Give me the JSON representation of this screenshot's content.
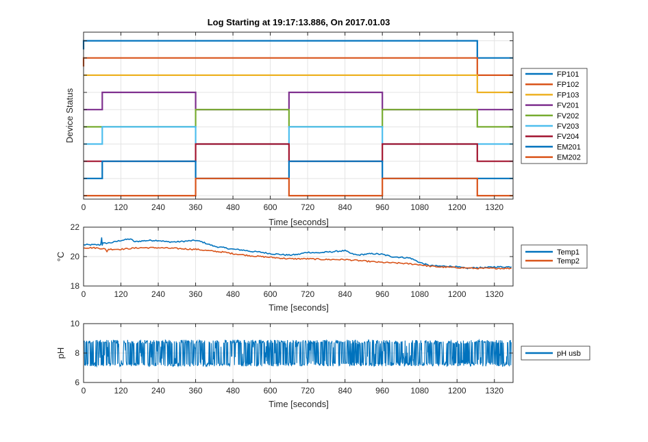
{
  "figure_title": "Log Starting at 19:17:13.886, On 2017.01.03",
  "colors": {
    "blue": "#0072BD",
    "orange": "#D95319",
    "yellow": "#EDB120",
    "purple": "#7E2F8E",
    "green": "#77AC30",
    "cyan": "#4DBEEE",
    "darkred": "#A2142F"
  },
  "chart_data": [
    {
      "id": "status",
      "type": "line",
      "xlabel": "Time [seconds]",
      "ylabel": "Device Status",
      "xlim": [
        0,
        1380
      ],
      "xticks": [
        0,
        120,
        240,
        360,
        480,
        600,
        720,
        840,
        960,
        1080,
        1200,
        1320
      ],
      "legend_position": "right",
      "grid": true,
      "series": [
        {
          "name": "FP101",
          "color": "#0072BD",
          "points": [
            [
              0,
              8.5
            ],
            [
              0,
              9
            ],
            [
              1265,
              9
            ],
            [
              1265,
              8
            ],
            [
              1380,
              8
            ]
          ]
        },
        {
          "name": "FP102",
          "color": "#D95319",
          "points": [
            [
              0,
              7.5
            ],
            [
              0,
              8
            ],
            [
              1265,
              8
            ],
            [
              1265,
              7
            ],
            [
              1380,
              7
            ]
          ]
        },
        {
          "name": "FP103",
          "color": "#EDB120",
          "points": [
            [
              0,
              7
            ],
            [
              1265,
              7
            ],
            [
              1265,
              6
            ],
            [
              1380,
              6
            ]
          ]
        },
        {
          "name": "FV201",
          "color": "#7E2F8E",
          "points": [
            [
              0,
              5
            ],
            [
              60,
              5
            ],
            [
              60,
              6
            ],
            [
              360,
              6
            ],
            [
              360,
              5
            ],
            [
              660,
              5
            ],
            [
              660,
              6
            ],
            [
              960,
              6
            ],
            [
              960,
              5
            ],
            [
              1380,
              5
            ]
          ]
        },
        {
          "name": "FV202",
          "color": "#77AC30",
          "points": [
            [
              0,
              4
            ],
            [
              360,
              4
            ],
            [
              360,
              5
            ],
            [
              660,
              5
            ],
            [
              660,
              4
            ],
            [
              960,
              4
            ],
            [
              960,
              5
            ],
            [
              1265,
              5
            ],
            [
              1265,
              4
            ],
            [
              1380,
              4
            ]
          ]
        },
        {
          "name": "FV203",
          "color": "#4DBEEE",
          "points": [
            [
              0,
              3
            ],
            [
              60,
              3
            ],
            [
              60,
              4
            ],
            [
              360,
              4
            ],
            [
              360,
              3
            ],
            [
              660,
              3
            ],
            [
              660,
              4
            ],
            [
              960,
              4
            ],
            [
              960,
              3
            ],
            [
              1380,
              3
            ]
          ]
        },
        {
          "name": "FV204",
          "color": "#A2142F",
          "points": [
            [
              0,
              2
            ],
            [
              360,
              2
            ],
            [
              360,
              3
            ],
            [
              660,
              3
            ],
            [
              660,
              2
            ],
            [
              960,
              2
            ],
            [
              960,
              3
            ],
            [
              1265,
              3
            ],
            [
              1265,
              2
            ],
            [
              1380,
              2
            ]
          ]
        },
        {
          "name": "EM201",
          "color": "#0072BD",
          "points": [
            [
              0,
              1
            ],
            [
              60,
              1
            ],
            [
              60,
              2
            ],
            [
              360,
              2
            ],
            [
              360,
              1
            ],
            [
              660,
              1
            ],
            [
              660,
              2
            ],
            [
              960,
              2
            ],
            [
              960,
              1
            ],
            [
              1380,
              1
            ]
          ]
        },
        {
          "name": "EM202",
          "color": "#D95319",
          "points": [
            [
              0,
              0
            ],
            [
              360,
              0
            ],
            [
              360,
              1
            ],
            [
              660,
              1
            ],
            [
              660,
              0
            ],
            [
              960,
              0
            ],
            [
              960,
              1
            ],
            [
              1265,
              1
            ],
            [
              1265,
              0
            ],
            [
              1380,
              0
            ]
          ]
        }
      ]
    },
    {
      "id": "temp",
      "type": "line",
      "xlabel": "Time [seconds]",
      "ylabel": "°C",
      "xlim": [
        0,
        1380
      ],
      "ylim": [
        18,
        22
      ],
      "xticks": [
        0,
        120,
        240,
        360,
        480,
        600,
        720,
        840,
        960,
        1080,
        1200,
        1320
      ],
      "yticks": [
        18,
        20,
        22
      ],
      "legend_position": "right",
      "grid": true,
      "series": [
        {
          "name": "Temp1",
          "color": "#0072BD",
          "x": [
            0,
            30,
            55,
            58,
            60,
            62,
            65,
            90,
            120,
            150,
            165,
            180,
            210,
            240,
            270,
            300,
            330,
            360,
            380,
            400,
            420,
            450,
            480,
            510,
            540,
            570,
            600,
            630,
            660,
            690,
            720,
            750,
            780,
            810,
            840,
            860,
            880,
            900,
            930,
            960,
            990,
            1020,
            1050,
            1080,
            1110,
            1140,
            1170,
            1200,
            1230,
            1260,
            1290,
            1320,
            1350,
            1375
          ],
          "y": [
            20.8,
            20.8,
            20.8,
            21.3,
            20.8,
            20.9,
            20.9,
            20.95,
            21.1,
            21.2,
            21.0,
            21.05,
            21.1,
            21.1,
            21.0,
            21.0,
            21.05,
            21.1,
            21.0,
            20.85,
            20.7,
            20.6,
            20.5,
            20.45,
            20.35,
            20.3,
            20.2,
            20.15,
            20.1,
            20.15,
            20.3,
            20.25,
            20.3,
            20.35,
            20.4,
            20.2,
            20.1,
            20.15,
            20.2,
            20.15,
            20.0,
            19.95,
            19.9,
            19.6,
            19.4,
            19.35,
            19.35,
            19.3,
            19.2,
            19.25,
            19.25,
            19.3,
            19.3,
            19.3
          ]
        },
        {
          "name": "Temp2",
          "color": "#D95319",
          "x": [
            0,
            30,
            60,
            70,
            75,
            80,
            120,
            180,
            240,
            300,
            350,
            360,
            400,
            450,
            480,
            540,
            600,
            660,
            720,
            780,
            840,
            900,
            960,
            1020,
            1080,
            1110,
            1140,
            1200,
            1260,
            1320,
            1375
          ],
          "y": [
            20.6,
            20.6,
            20.55,
            20.5,
            20.35,
            20.5,
            20.5,
            20.6,
            20.6,
            20.55,
            20.5,
            20.5,
            20.4,
            20.3,
            20.2,
            20.05,
            19.95,
            19.85,
            19.85,
            19.8,
            19.8,
            19.7,
            19.6,
            19.55,
            19.45,
            19.35,
            19.3,
            19.25,
            19.2,
            19.2,
            19.2
          ]
        }
      ]
    },
    {
      "id": "ph",
      "type": "line",
      "xlabel": "Time [seconds]",
      "ylabel": "pH",
      "xlim": [
        0,
        1380
      ],
      "ylim": [
        6,
        10
      ],
      "xticks": [
        0,
        120,
        240,
        360,
        480,
        600,
        720,
        840,
        960,
        1080,
        1200,
        1320
      ],
      "yticks": [
        6,
        8,
        10
      ],
      "legend_position": "right",
      "grid": true,
      "series": [
        {
          "name": "pH usb",
          "color": "#0072BD",
          "noise_center": 8,
          "noise_min": 7.1,
          "noise_max": 8.9
        }
      ]
    }
  ]
}
